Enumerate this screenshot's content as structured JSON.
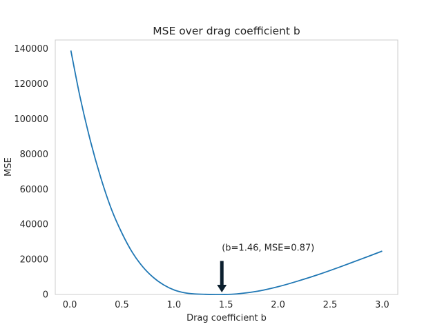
{
  "chart_data": {
    "type": "line",
    "title": "MSE over drag coefficient b",
    "xlabel": "Drag coefficient b",
    "ylabel": "MSE",
    "xlim": [
      -0.14,
      3.15
    ],
    "ylim": [
      0,
      145000
    ],
    "grid": false,
    "x_ticks": [
      0.0,
      0.5,
      1.0,
      1.5,
      2.0,
      2.5,
      3.0
    ],
    "x_tick_labels": [
      "0.0",
      "0.5",
      "1.0",
      "1.5",
      "2.0",
      "2.5",
      "3.0"
    ],
    "y_ticks": [
      0,
      20000,
      40000,
      60000,
      80000,
      100000,
      120000,
      140000
    ],
    "y_tick_labels": [
      "0",
      "20000",
      "40000",
      "60000",
      "80000",
      "100000",
      "120000",
      "140000"
    ],
    "series": [
      {
        "color": "#1f77b4",
        "x": [
          0.01,
          0.1,
          0.2,
          0.3,
          0.4,
          0.5,
          0.6,
          0.7,
          0.8,
          0.9,
          1.0,
          1.1,
          1.2,
          1.3,
          1.46,
          1.6,
          1.8,
          2.0,
          2.2,
          2.4,
          2.6,
          2.8,
          3.0
        ],
        "y": [
          139000,
          112000,
          87000,
          66000,
          48500,
          35000,
          24000,
          15800,
          9800,
          5500,
          2600,
          1000,
          300,
          80,
          0.87,
          300,
          1800,
          4400,
          7800,
          11600,
          15800,
          20200,
          24700
        ]
      }
    ],
    "annotations": [
      {
        "text": "(b=1.46, MSE=0.87)",
        "point": [
          1.46,
          0.87
        ],
        "text_at": [
          1.46,
          25000
        ],
        "arrow_color": "#0b1f2e"
      }
    ]
  }
}
